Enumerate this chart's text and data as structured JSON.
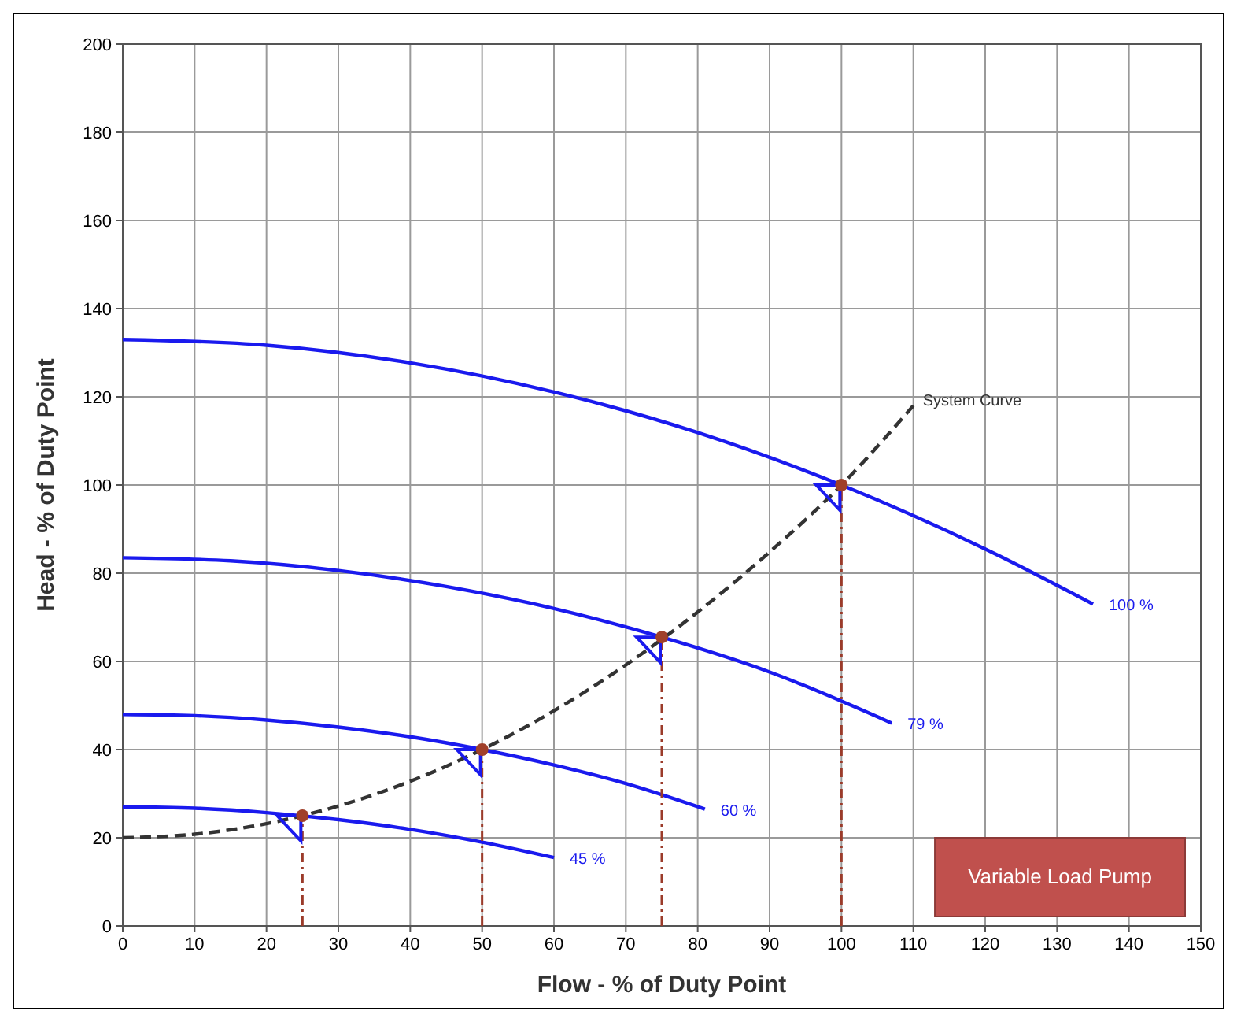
{
  "chart_data": {
    "type": "line",
    "xlabel": "Flow - % of Duty Point",
    "ylabel": "Head - % of Duty Point",
    "xlim": [
      0,
      150
    ],
    "xticks": [
      0,
      10,
      20,
      30,
      40,
      50,
      60,
      70,
      80,
      90,
      100,
      110,
      120,
      130,
      140,
      150
    ],
    "ylim": [
      0,
      200
    ],
    "yticks": [
      0,
      20,
      40,
      60,
      80,
      100,
      120,
      140,
      160,
      180,
      200
    ],
    "grid": true,
    "marker": "none",
    "line_style": "solid",
    "series": [
      {
        "name": "100 %",
        "color": "#1a1aee",
        "x": [
          0,
          20,
          40,
          60,
          80,
          100,
          120,
          135
        ],
        "values": [
          133,
          131.7,
          127.7,
          121.1,
          111.9,
          100,
          85.5,
          73
        ]
      },
      {
        "name": "79 %",
        "color": "#1a1aee",
        "x": [
          0,
          15,
          30,
          45,
          60,
          75,
          90,
          107
        ],
        "values": [
          83.5,
          82.8,
          80.6,
          77,
          72,
          65.5,
          57.6,
          46
        ]
      },
      {
        "name": "60 %",
        "color": "#1a1aee",
        "x": [
          0,
          10,
          20,
          30,
          40,
          50,
          60,
          70,
          81
        ],
        "values": [
          48,
          47.7,
          46.7,
          45.1,
          42.9,
          40,
          36.5,
          32.3,
          26.5
        ]
      },
      {
        "name": "45 %",
        "color": "#1a1aee",
        "x": [
          0,
          10,
          20,
          30,
          40,
          50,
          60
        ],
        "values": [
          27,
          26.7,
          25.7,
          24.1,
          21.9,
          19,
          15.5
        ]
      },
      {
        "name": "System Curve",
        "color": "#333333",
        "line_style": "dashed",
        "x": [
          0,
          10,
          20,
          30,
          40,
          50,
          60,
          70,
          80,
          90,
          100,
          110
        ],
        "values": [
          20,
          20.8,
          23.2,
          27.2,
          32.8,
          40,
          48.8,
          59.2,
          71.2,
          84.8,
          100,
          118
        ]
      },
      {
        "color": "#9b3b2a",
        "line_style": "dashed",
        "x": [
          25,
          25
        ],
        "values": [
          0,
          25
        ]
      },
      {
        "color": "#9b3b2a",
        "line_style": "dashed",
        "x": [
          50,
          50
        ],
        "values": [
          0,
          40
        ]
      },
      {
        "color": "#9b3b2a",
        "line_style": "dashed",
        "x": [
          75,
          75
        ],
        "values": [
          0,
          65.5
        ]
      },
      {
        "color": "#9b3b2a",
        "line_style": "dashed",
        "x": [
          100,
          100
        ],
        "values": [
          0,
          100
        ]
      },
      {
        "type": "scatter",
        "marker": "circle",
        "color": "#a0402a",
        "x": [
          25,
          50,
          75,
          100
        ],
        "values": [
          25,
          40,
          65.5,
          100
        ]
      }
    ],
    "annotations": [
      "Variable Load Pump"
    ]
  }
}
